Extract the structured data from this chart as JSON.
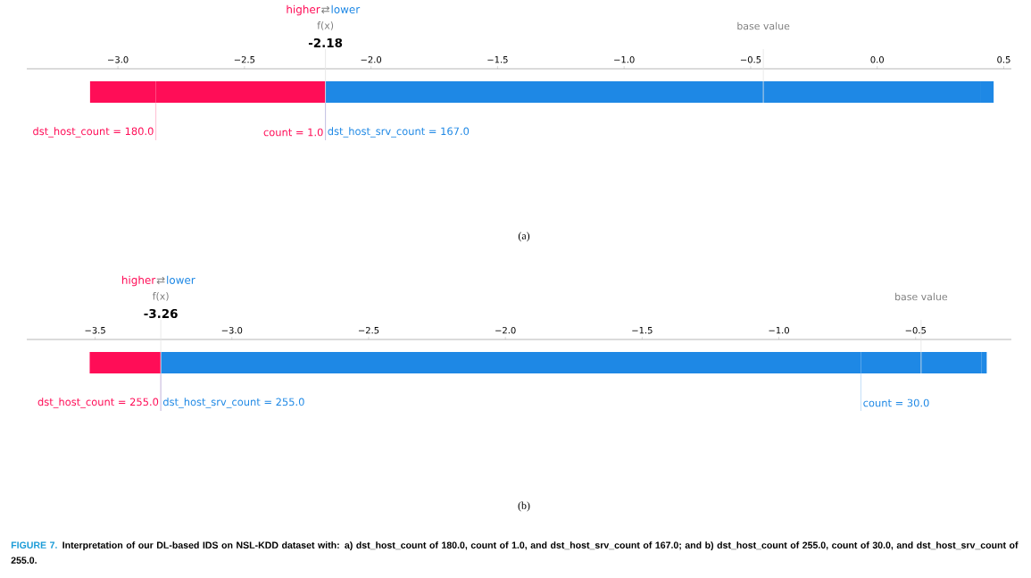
{
  "chart_data": [
    {
      "type": "bar",
      "orientation": "horizontal",
      "categories": [
        null
      ],
      "series": [
        {
          "name": "dst_host_count = 180.0",
          "color": "#ff0d57",
          "base": [
            -3.11
          ],
          "values": [
            0.26
          ]
        },
        {
          "name": "count = 1.0",
          "color": "#ff0d57",
          "base": [
            -2.85
          ],
          "values": [
            0.67
          ]
        },
        {
          "name": "dst_host_srv_count = 167.0",
          "color": "#1e88e5",
          "base": [
            -2.18
          ],
          "values": [
            2.59
          ]
        },
        {
          "color": "#1e88e5",
          "base": [
            0.41
          ],
          "values": [
            0.05
          ]
        }
      ],
      "xlim": [
        -3.36,
        0.53
      ],
      "xticks": [
        {
          "value": -3.0,
          "label": "−3.0"
        },
        {
          "value": -2.5,
          "label": "−2.5"
        },
        {
          "value": -2.0,
          "label": "−2.0"
        },
        {
          "value": -1.5,
          "label": "−1.5"
        },
        {
          "value": -1.0,
          "label": "−1.0"
        },
        {
          "value": -0.5,
          "label": "−0.5"
        },
        {
          "value": 0,
          "label": "0.0"
        },
        0.5
      ],
      "ref_lines": [
        {
          "axis": "x",
          "value": -2.18,
          "label": "f(x)"
        },
        {
          "axis": "x",
          "value": -0.45,
          "label": "base value"
        }
      ],
      "annotations": [
        "higher",
        "⇄",
        "lower",
        "-2.18",
        "(a)"
      ]
    },
    {
      "type": "bar",
      "orientation": "horizontal",
      "categories": [
        null
      ],
      "series": [
        {
          "name": "dst_host_count = 255.0",
          "color": "#ff0d57",
          "base": [
            -3.52
          ],
          "values": [
            0.26
          ]
        },
        {
          "name": "dst_host_srv_count = 255.0",
          "color": "#1e88e5",
          "base": [
            -3.26
          ],
          "values": [
            2.56
          ]
        },
        {
          "name": "count = 30.0",
          "color": "#1e88e5",
          "base": [
            -0.7
          ],
          "values": [
            0.44
          ]
        },
        {
          "color": "#1e88e5",
          "base": [
            -0.26
          ],
          "values": [
            0.02
          ]
        }
      ],
      "xlim": [
        -3.75,
        -0.15
      ],
      "xticks": [
        {
          "value": -3.5,
          "label": "−3.5"
        },
        {
          "value": -3.0,
          "label": "−3.0"
        },
        {
          "value": -2.5,
          "label": "−2.5"
        },
        {
          "value": -2.0,
          "label": "−2.0"
        },
        {
          "value": -1.5,
          "label": "−1.5"
        },
        {
          "value": -1.0,
          "label": "−1.0"
        },
        {
          "value": -0.5,
          "label": "−0.5"
        }
      ],
      "ref_lines": [
        {
          "axis": "x",
          "value": -3.26,
          "label": "f(x)"
        },
        {
          "axis": "x",
          "value": -0.48,
          "label": "base value"
        }
      ],
      "annotations": [
        "higher",
        "⇄",
        "lower",
        "-3.26",
        "(b)",
        "FIGURE 7.",
        "Interpretation of our DL-based IDS on NSL-KDD dataset with: a) dst_host_count of 180.0, count of 1.0, and dst_host_srv_count of 167.0; and b) dst_host_count of 255.0, count of 30.0, and dst_host_srv_count of 255.0."
      ]
    }
  ]
}
